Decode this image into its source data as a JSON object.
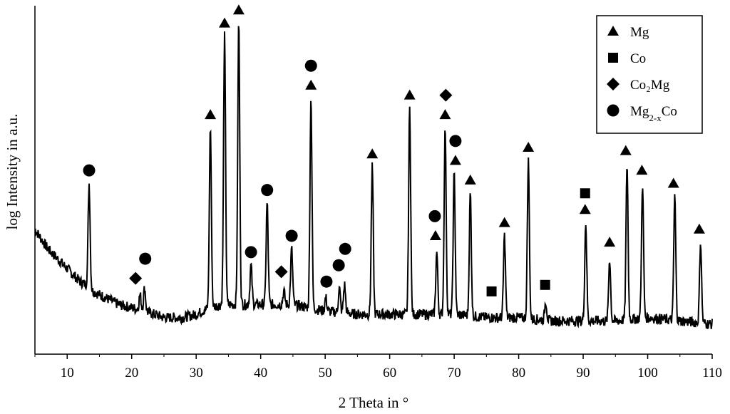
{
  "chart_data": {
    "type": "line",
    "xlabel": "2 Theta in °",
    "ylabel": "log Intensity in a.u.",
    "xlim": [
      5,
      110
    ],
    "ylim": [
      0,
      100
    ],
    "x_ticks": [
      10,
      20,
      30,
      40,
      50,
      60,
      70,
      80,
      90,
      100,
      110
    ],
    "y_ticks_labeled": false,
    "grid": false,
    "legend_position": "top-right",
    "legend": [
      {
        "marker": "triangle",
        "label": "Mg"
      },
      {
        "marker": "square",
        "label": "Co"
      },
      {
        "marker": "diamond",
        "label": "Co₂Mg"
      },
      {
        "marker": "circle",
        "label": "Mg2-xCo",
        "label_main": "Mg",
        "label_sub": "2-x",
        "label_tail": "Co"
      }
    ],
    "series": [
      {
        "line_color": "#000000",
        "background": [
          [
            5,
            36
          ],
          [
            6,
            33
          ],
          [
            7,
            30
          ],
          [
            8,
            28
          ],
          [
            9,
            26
          ],
          [
            10,
            24
          ],
          [
            11,
            22
          ],
          [
            12,
            20
          ],
          [
            13,
            19
          ],
          [
            14,
            17
          ],
          [
            15,
            16
          ],
          [
            16,
            15
          ],
          [
            17,
            14
          ],
          [
            18,
            13
          ],
          [
            20,
            12
          ],
          [
            22,
            11
          ],
          [
            25,
            9
          ],
          [
            28,
            9
          ],
          [
            30,
            10
          ],
          [
            32,
            12
          ],
          [
            34,
            13
          ],
          [
            36,
            13
          ],
          [
            40,
            13
          ],
          [
            45,
            13
          ],
          [
            50,
            11
          ],
          [
            55,
            10
          ],
          [
            60,
            10
          ],
          [
            65,
            10
          ],
          [
            70,
            10
          ],
          [
            75,
            9
          ],
          [
            80,
            9
          ],
          [
            85,
            8
          ],
          [
            90,
            8
          ],
          [
            95,
            8
          ],
          [
            100,
            9
          ],
          [
            105,
            8
          ],
          [
            110,
            7
          ]
        ],
        "peaks": [
          {
            "x": 13.4,
            "y": 50
          },
          {
            "x": 21.3,
            "y": 16
          },
          {
            "x": 22.0,
            "y": 18
          },
          {
            "x": 32.2,
            "y": 67
          },
          {
            "x": 34.4,
            "y": 95
          },
          {
            "x": 36.6,
            "y": 99
          },
          {
            "x": 38.5,
            "y": 25
          },
          {
            "x": 41.0,
            "y": 44
          },
          {
            "x": 43.6,
            "y": 17
          },
          {
            "x": 44.8,
            "y": 30
          },
          {
            "x": 47.8,
            "y": 76
          },
          {
            "x": 50.1,
            "y": 15
          },
          {
            "x": 52.2,
            "y": 18
          },
          {
            "x": 53.0,
            "y": 19
          },
          {
            "x": 57.3,
            "y": 55
          },
          {
            "x": 63.1,
            "y": 73
          },
          {
            "x": 67.3,
            "y": 29
          },
          {
            "x": 68.6,
            "y": 67
          },
          {
            "x": 70.0,
            "y": 53
          },
          {
            "x": 72.5,
            "y": 47
          },
          {
            "x": 77.8,
            "y": 34
          },
          {
            "x": 81.5,
            "y": 57
          },
          {
            "x": 84.2,
            "y": 14
          },
          {
            "x": 90.4,
            "y": 38
          },
          {
            "x": 94.1,
            "y": 27
          },
          {
            "x": 96.8,
            "y": 56
          },
          {
            "x": 99.2,
            "y": 50
          },
          {
            "x": 104.2,
            "y": 46
          },
          {
            "x": 108.2,
            "y": 32
          }
        ]
      }
    ],
    "annotations": [
      {
        "marker": "circle",
        "x": 13.4,
        "y": 54
      },
      {
        "marker": "diamond",
        "x": 20.6,
        "y": 21
      },
      {
        "marker": "circle",
        "x": 22.1,
        "y": 27
      },
      {
        "marker": "triangle",
        "x": 32.2,
        "y": 71
      },
      {
        "marker": "triangle",
        "x": 34.4,
        "y": 99
      },
      {
        "marker": "triangle",
        "x": 36.6,
        "y": 103
      },
      {
        "marker": "circle",
        "x": 38.5,
        "y": 29
      },
      {
        "marker": "circle",
        "x": 41.0,
        "y": 48
      },
      {
        "marker": "diamond",
        "x": 43.2,
        "y": 23
      },
      {
        "marker": "circle",
        "x": 44.8,
        "y": 34
      },
      {
        "marker": "triangle",
        "x": 47.8,
        "y": 80
      },
      {
        "marker": "circle",
        "x": 47.8,
        "y": 86
      },
      {
        "marker": "circle",
        "x": 50.2,
        "y": 20
      },
      {
        "marker": "circle",
        "x": 52.1,
        "y": 25
      },
      {
        "marker": "circle",
        "x": 53.1,
        "y": 30
      },
      {
        "marker": "triangle",
        "x": 57.3,
        "y": 59
      },
      {
        "marker": "triangle",
        "x": 63.1,
        "y": 77
      },
      {
        "marker": "triangle",
        "x": 67.1,
        "y": 34
      },
      {
        "marker": "circle",
        "x": 67.0,
        "y": 40
      },
      {
        "marker": "triangle",
        "x": 68.6,
        "y": 71
      },
      {
        "marker": "diamond",
        "x": 68.7,
        "y": 77
      },
      {
        "marker": "circle",
        "x": 70.2,
        "y": 63
      },
      {
        "marker": "triangle",
        "x": 70.2,
        "y": 57
      },
      {
        "marker": "triangle",
        "x": 72.5,
        "y": 51
      },
      {
        "marker": "triangle",
        "x": 77.8,
        "y": 38
      },
      {
        "marker": "square",
        "x": 75.8,
        "y": 17
      },
      {
        "marker": "triangle",
        "x": 81.5,
        "y": 61
      },
      {
        "marker": "square",
        "x": 84.1,
        "y": 19
      },
      {
        "marker": "square",
        "x": 90.3,
        "y": 47
      },
      {
        "marker": "triangle",
        "x": 90.3,
        "y": 42
      },
      {
        "marker": "triangle",
        "x": 94.1,
        "y": 32
      },
      {
        "marker": "triangle",
        "x": 96.6,
        "y": 60
      },
      {
        "marker": "triangle",
        "x": 99.1,
        "y": 54
      },
      {
        "marker": "triangle",
        "x": 104.0,
        "y": 50
      },
      {
        "marker": "triangle",
        "x": 108.0,
        "y": 36
      }
    ]
  }
}
